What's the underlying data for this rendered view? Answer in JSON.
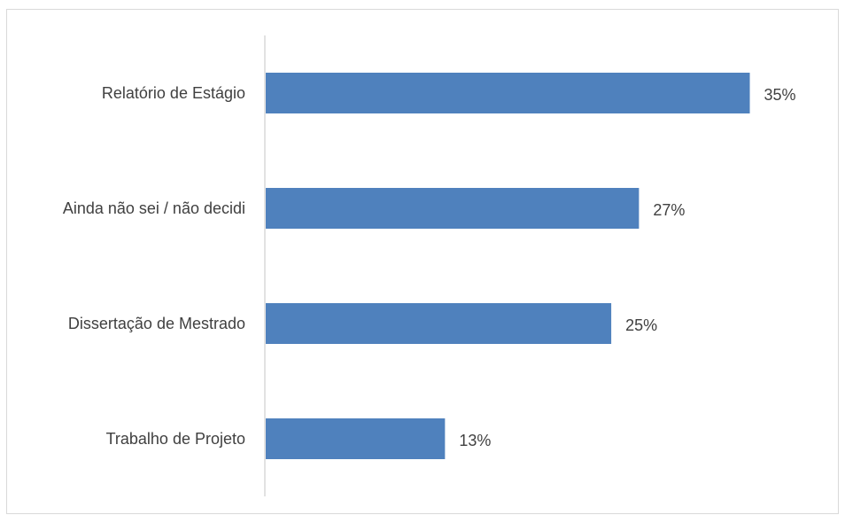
{
  "chart_data": {
    "type": "bar",
    "orientation": "horizontal",
    "title": "",
    "xlabel": "",
    "ylabel": "",
    "categories": [
      "Relatório de Estágio",
      "Ainda não sei / não decidi",
      "Dissertação de Mestrado",
      "Trabalho de Projeto"
    ],
    "values": [
      35,
      27,
      25,
      13
    ],
    "value_labels": [
      "35%",
      "27%",
      "25%",
      "13%"
    ],
    "unit": "%",
    "xlim": [
      0,
      36.5
    ],
    "grid": false,
    "legend": "none",
    "bar_color": "#4f81bd",
    "axis_color": "#d9d9d9",
    "text_color": "#404040"
  }
}
